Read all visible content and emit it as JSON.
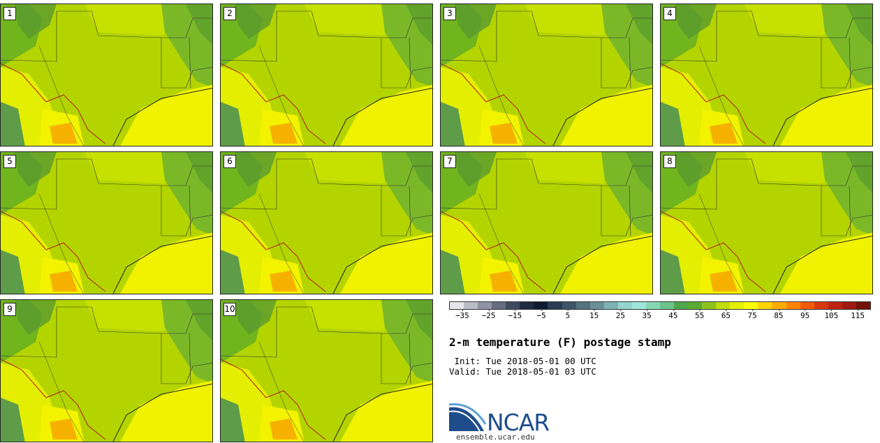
{
  "panels": [
    "1",
    "2",
    "3",
    "4",
    "5",
    "6",
    "7",
    "8",
    "9",
    "10"
  ],
  "colorbar": {
    "colors": [
      "#e4e4ea",
      "#bbbcc6",
      "#8f93a3",
      "#666d80",
      "#3f4a5f",
      "#1e2b40",
      "#0f1b30",
      "#2a3b52",
      "#3e5468",
      "#55727f",
      "#6a919a",
      "#7fb3b6",
      "#95d5cf",
      "#9ee6da",
      "#88d7b4",
      "#6cc48c",
      "#4fa84b",
      "#5aab33",
      "#8dc31c",
      "#c2de0a",
      "#e6ef00",
      "#ffff00",
      "#ffd400",
      "#ffad00",
      "#ff8400",
      "#f15a08",
      "#d8380d",
      "#bd2410",
      "#9e1a12",
      "#731209"
    ],
    "ticks": [
      "-35",
      "-25",
      "-15",
      "-5",
      "5",
      "15",
      "25",
      "35",
      "45",
      "55",
      "65",
      "75",
      "85",
      "95",
      "105",
      "115"
    ],
    "tick_values": [
      -35,
      -25,
      -15,
      -5,
      5,
      15,
      25,
      35,
      45,
      55,
      65,
      75,
      85,
      95,
      105,
      115
    ],
    "min": -40,
    "max": 120
  },
  "title": "2-m temperature (F) postage stamp",
  "init": " Init: Tue 2018-05-01 00 UTC",
  "valid": "Valid: Tue 2018-05-01 03 UTC",
  "logo_text": "NCAR",
  "url": "ensemble.ucar.edu"
}
